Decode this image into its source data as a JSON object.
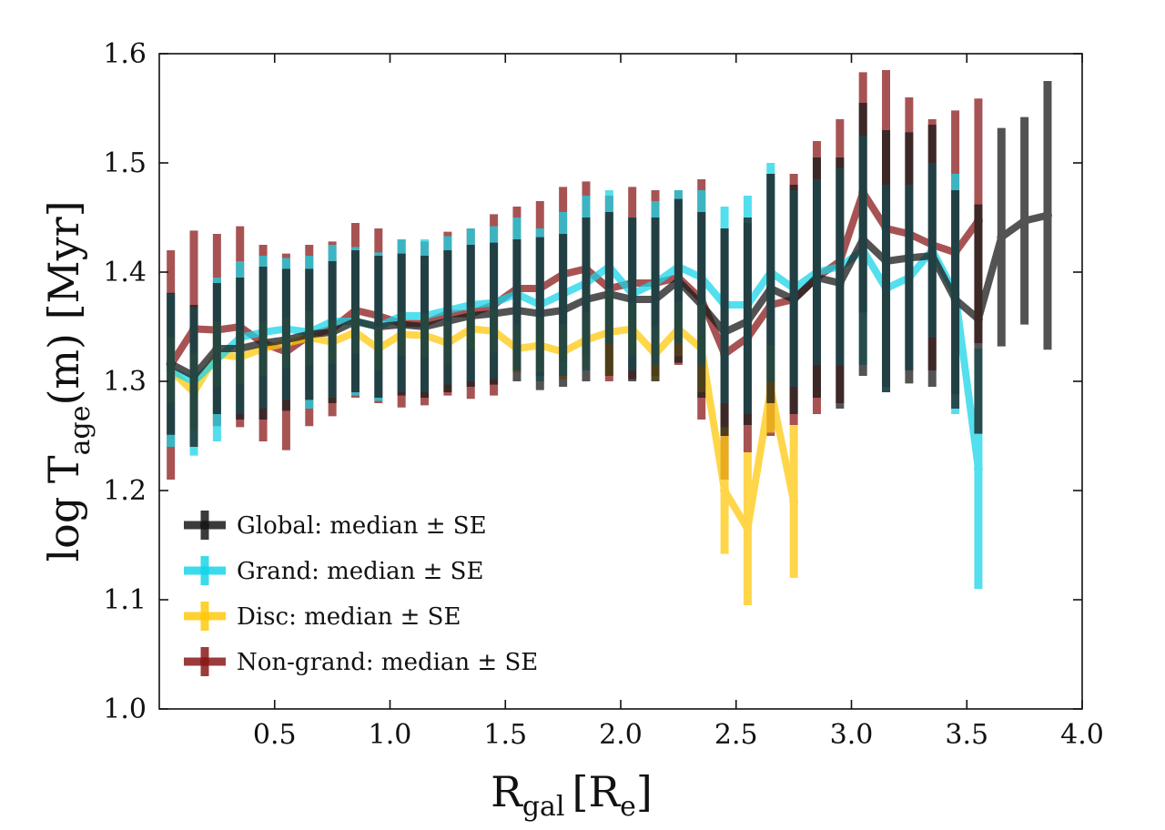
{
  "chart_data": {
    "type": "line",
    "x_axis": {
      "label_main": "R",
      "label_sub": "gal",
      "label_unit_open": "[R",
      "label_unit_sub": "e",
      "label_unit_close": "]",
      "range": [
        0.0,
        4.0
      ],
      "ticks": [
        0.5,
        1.0,
        1.5,
        2.0,
        2.5,
        3.0,
        3.5,
        4.0
      ],
      "tick_labels": [
        "0.5",
        "1.0",
        "1.5",
        "2.0",
        "2.5",
        "3.0",
        "3.5",
        "4.0"
      ]
    },
    "y_axis": {
      "label_pre": "log T",
      "label_sub": "age",
      "label_post": "(m) [Myr]",
      "range": [
        1.0,
        1.6
      ],
      "ticks": [
        1.0,
        1.1,
        1.2,
        1.3,
        1.4,
        1.5,
        1.6
      ],
      "tick_labels": [
        "1.0",
        "1.1",
        "1.2",
        "1.3",
        "1.4",
        "1.5",
        "1.6"
      ]
    },
    "legend_position": "lower-left",
    "x": [
      0.05,
      0.15,
      0.25,
      0.35,
      0.45,
      0.55,
      0.65,
      0.75,
      0.85,
      0.95,
      1.05,
      1.15,
      1.25,
      1.35,
      1.45,
      1.55,
      1.65,
      1.75,
      1.85,
      1.95,
      2.05,
      2.15,
      2.25,
      2.35,
      2.45,
      2.55,
      2.65,
      2.75,
      2.85,
      2.95,
      3.05,
      3.15,
      3.25,
      3.35,
      3.45,
      3.55,
      3.65,
      3.75,
      3.85
    ],
    "series": [
      {
        "name": "Non-grand: median ± SE",
        "color": "#8b1a1a",
        "y": [
          1.315,
          1.348,
          1.347,
          1.35,
          1.335,
          1.327,
          1.342,
          1.348,
          1.365,
          1.36,
          1.353,
          1.353,
          1.362,
          1.362,
          1.37,
          1.385,
          1.385,
          1.398,
          1.403,
          1.385,
          1.39,
          1.39,
          1.395,
          1.375,
          1.325,
          1.34,
          1.37,
          1.375,
          1.395,
          1.41,
          1.473,
          1.44,
          1.435,
          1.425,
          1.418,
          1.447,
          null,
          null,
          null
        ],
        "err": [
          0.105,
          0.09,
          0.088,
          0.092,
          0.09,
          0.09,
          0.083,
          0.08,
          0.08,
          0.08,
          0.077,
          0.075,
          0.075,
          0.078,
          0.083,
          0.075,
          0.08,
          0.08,
          0.08,
          0.085,
          0.088,
          0.085,
          0.08,
          0.11,
          0.115,
          0.105,
          0.12,
          0.115,
          0.125,
          0.13,
          0.11,
          0.145,
          0.125,
          0.115,
          0.13,
          0.112,
          null,
          null,
          null
        ]
      },
      {
        "name": "Disc: median ± SE",
        "color": "#ffc90e",
        "y": [
          1.31,
          1.29,
          1.325,
          1.322,
          1.33,
          1.335,
          1.34,
          1.336,
          1.345,
          1.33,
          1.343,
          1.342,
          1.335,
          1.348,
          1.346,
          1.33,
          1.333,
          1.327,
          1.338,
          1.345,
          1.348,
          1.325,
          1.348,
          1.33,
          1.2,
          1.165,
          1.293,
          1.19,
          null,
          null,
          null,
          null,
          null,
          null,
          null,
          null,
          null,
          null,
          null
        ],
        "err": [
          0.03,
          0.035,
          0.03,
          0.025,
          0.025,
          0.023,
          0.025,
          0.02,
          0.02,
          0.02,
          0.02,
          0.02,
          0.02,
          0.02,
          0.02,
          0.022,
          0.025,
          0.025,
          0.025,
          0.04,
          0.025,
          0.025,
          0.025,
          0.04,
          0.058,
          0.07,
          0.04,
          0.07,
          null,
          null,
          null,
          null,
          null,
          null,
          null,
          null,
          null,
          null,
          null
        ]
      },
      {
        "name": "Grand: median ± SE",
        "color": "#1ad5e8",
        "y": [
          1.31,
          1.3,
          1.32,
          1.34,
          1.345,
          1.348,
          1.345,
          1.355,
          1.355,
          1.35,
          1.36,
          1.36,
          1.365,
          1.37,
          1.372,
          1.38,
          1.37,
          1.38,
          1.39,
          1.405,
          1.38,
          1.39,
          1.405,
          1.395,
          1.37,
          1.37,
          1.4,
          1.385,
          1.4,
          1.405,
          1.42,
          1.385,
          1.395,
          1.42,
          1.38,
          1.22,
          null,
          null,
          null
        ],
        "err": [
          0.07,
          0.068,
          0.075,
          0.07,
          0.07,
          0.065,
          0.07,
          0.07,
          0.068,
          0.068,
          0.07,
          0.07,
          0.068,
          0.07,
          0.07,
          0.07,
          0.07,
          0.075,
          0.08,
          0.07,
          0.07,
          0.075,
          0.07,
          0.08,
          0.09,
          0.1,
          0.1,
          0.09,
          0.085,
          0.09,
          0.105,
          0.095,
          0.085,
          0.08,
          0.11,
          0.11,
          null,
          null,
          null
        ]
      },
      {
        "name": "Global: median ± SE",
        "color": "#1a1a1a",
        "y": [
          1.316,
          1.305,
          1.33,
          1.33,
          1.335,
          1.338,
          1.343,
          1.345,
          1.355,
          1.35,
          1.352,
          1.35,
          1.355,
          1.36,
          1.362,
          1.365,
          1.362,
          1.365,
          1.375,
          1.38,
          1.375,
          1.375,
          1.392,
          1.37,
          1.345,
          1.355,
          1.385,
          1.375,
          1.395,
          1.39,
          1.43,
          1.41,
          1.413,
          1.415,
          1.375,
          1.357,
          1.432,
          1.447,
          1.452
        ],
        "err": [
          0.065,
          0.065,
          0.06,
          0.065,
          0.07,
          0.065,
          0.06,
          0.065,
          0.065,
          0.065,
          0.065,
          0.065,
          0.065,
          0.065,
          0.065,
          0.065,
          0.07,
          0.07,
          0.075,
          0.075,
          0.075,
          0.075,
          0.075,
          0.085,
          0.095,
          0.095,
          0.105,
          0.105,
          0.11,
          0.115,
          0.125,
          0.12,
          0.115,
          0.12,
          0.1,
          0.105,
          0.1,
          0.095,
          0.123
        ]
      }
    ],
    "legend": [
      {
        "label": "Global: median ± SE",
        "color": "#1a1a1a"
      },
      {
        "label": "Grand: median ± SE",
        "color": "#1ad5e8"
      },
      {
        "label": "Disc: median ± SE",
        "color": "#ffc90e"
      },
      {
        "label": "Non-grand: median ± SE",
        "color": "#8b1a1a"
      }
    ]
  }
}
